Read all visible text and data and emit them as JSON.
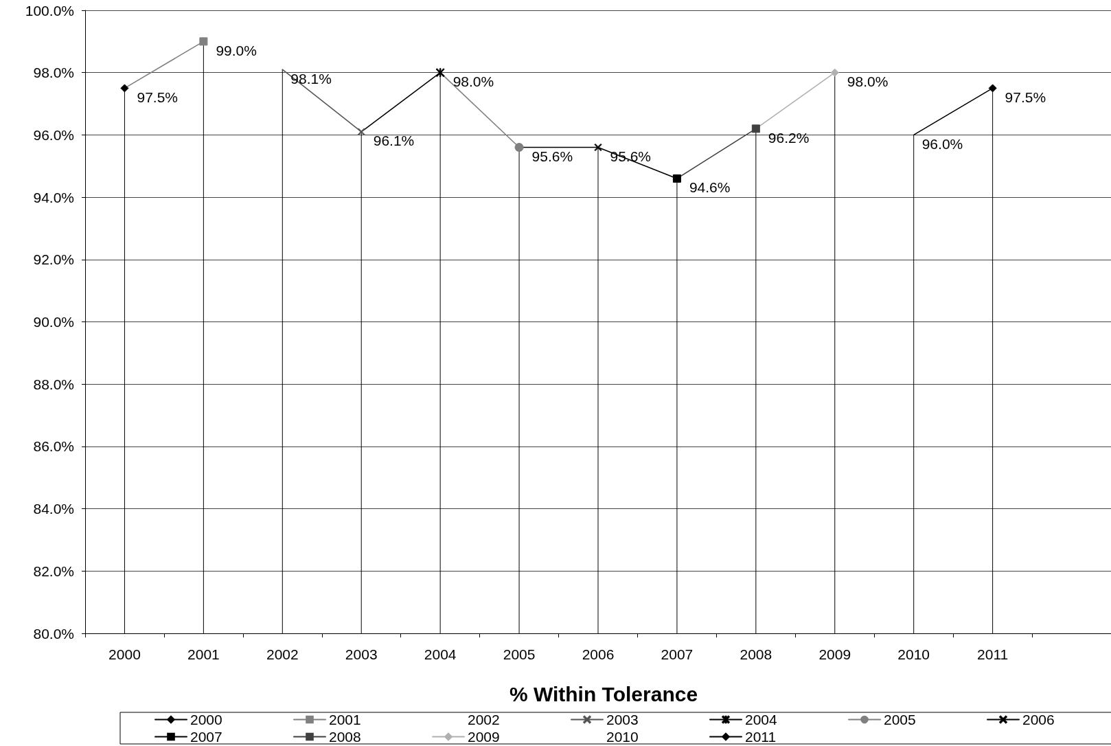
{
  "chart_data": {
    "type": "line",
    "title": "% Within Tolerance",
    "categories": [
      "2000",
      "2001",
      "2002",
      "2003",
      "2004",
      "2005",
      "2006",
      "2007",
      "2008",
      "2009",
      "2010",
      "2011",
      null
    ],
    "ylim": [
      80,
      100
    ],
    "yticks": [
      {
        "value": 80,
        "label": "80.0%"
      },
      {
        "value": 82,
        "label": "82.0%"
      },
      {
        "value": 84,
        "label": "84.0%"
      },
      {
        "value": 86,
        "label": "86.0%"
      },
      {
        "value": 88,
        "label": "88.0%"
      },
      {
        "value": 90,
        "label": "90.0%"
      },
      {
        "value": 92,
        "label": "92.0%"
      },
      {
        "value": 94,
        "label": "94.0%"
      },
      {
        "value": 96,
        "label": "96.0%"
      },
      {
        "value": 98,
        "label": "98.0%"
      },
      {
        "value": 100,
        "label": "100.0%"
      }
    ],
    "grid": "y",
    "legend": "bottom",
    "series": [
      {
        "name": "2000",
        "color": "#000000",
        "marker": "diamond",
        "values": [
          97.5,
          null,
          null,
          null,
          null,
          null,
          null,
          null,
          null,
          null,
          null,
          null,
          null
        ],
        "value_labels": [
          "97.5%",
          null,
          null,
          null,
          null,
          null,
          null,
          null,
          null,
          null,
          null,
          null,
          null
        ]
      },
      {
        "name": "2001",
        "color": "#808080",
        "marker": "square",
        "values": [
          97.5,
          99.0,
          null,
          null,
          null,
          null,
          null,
          null,
          null,
          null,
          null,
          null,
          null
        ],
        "value_labels": [
          null,
          "99.0%",
          null,
          null,
          null,
          null,
          null,
          null,
          null,
          null,
          null,
          null,
          null
        ]
      },
      {
        "name": "2002",
        "marker": "none",
        "values": [
          null,
          null,
          null,
          null,
          null,
          null,
          null,
          null,
          null,
          null,
          null,
          null,
          null
        ]
      },
      {
        "name": "2003",
        "color": "#555555",
        "marker": "cross",
        "values": [
          null,
          null,
          98.1,
          96.1,
          null,
          null,
          null,
          null,
          null,
          null,
          null,
          null,
          null
        ],
        "value_labels": [
          null,
          null,
          "98.1%",
          "96.1%",
          null,
          null,
          null,
          null,
          null,
          null,
          null,
          null,
          null
        ]
      },
      {
        "name": "2004",
        "color": "#000000",
        "marker": "star",
        "values": [
          null,
          null,
          null,
          96.1,
          98.0,
          null,
          null,
          null,
          null,
          null,
          null,
          null,
          null
        ],
        "value_labels": [
          null,
          null,
          null,
          null,
          "98.0%",
          null,
          null,
          null,
          null,
          null,
          null,
          null,
          null
        ]
      },
      {
        "name": "2005",
        "color": "#808080",
        "marker": "circle",
        "values": [
          null,
          null,
          null,
          null,
          98.0,
          95.6,
          null,
          null,
          null,
          null,
          null,
          null,
          null
        ],
        "value_labels": [
          null,
          null,
          null,
          null,
          null,
          "95.6%",
          null,
          null,
          null,
          null,
          null,
          null,
          null
        ]
      },
      {
        "name": "2006",
        "color": "#000000",
        "marker": "cross",
        "values": [
          null,
          null,
          null,
          null,
          null,
          95.6,
          95.6,
          null,
          null,
          null,
          null,
          null,
          null
        ],
        "value_labels": [
          null,
          null,
          null,
          null,
          null,
          null,
          "95.6%",
          null,
          null,
          null,
          null,
          null,
          null
        ]
      },
      {
        "name": "2007",
        "color": "#000000",
        "marker": "square",
        "values": [
          null,
          null,
          null,
          null,
          null,
          null,
          95.6,
          94.6,
          null,
          null,
          null,
          null,
          null
        ],
        "value_labels": [
          null,
          null,
          null,
          null,
          null,
          null,
          null,
          "94.6%",
          null,
          null,
          null,
          null,
          null
        ]
      },
      {
        "name": "2008",
        "color": "#404040",
        "marker": "square",
        "values": [
          null,
          null,
          null,
          null,
          null,
          null,
          null,
          94.6,
          96.2,
          null,
          null,
          null,
          null
        ],
        "value_labels": [
          null,
          null,
          null,
          null,
          null,
          null,
          null,
          null,
          "96.2%",
          null,
          null,
          null,
          null
        ]
      },
      {
        "name": "2009",
        "color": "#b0b0b0",
        "marker": "diamond",
        "values": [
          null,
          null,
          null,
          null,
          null,
          null,
          null,
          null,
          96.2,
          98.0,
          null,
          null,
          null
        ],
        "value_labels": [
          null,
          null,
          null,
          null,
          null,
          null,
          null,
          null,
          null,
          "98.0%",
          null,
          null,
          null
        ]
      },
      {
        "name": "2010",
        "marker": "none",
        "values": [
          null,
          null,
          null,
          null,
          null,
          null,
          null,
          null,
          null,
          null,
          null,
          null,
          null
        ]
      },
      {
        "name": "2011",
        "color": "#000000",
        "marker": "diamond",
        "values": [
          null,
          null,
          null,
          null,
          null,
          null,
          null,
          null,
          null,
          null,
          96.0,
          97.5,
          null
        ],
        "value_labels": [
          null,
          null,
          null,
          null,
          null,
          null,
          null,
          null,
          null,
          null,
          "96.0%",
          "97.5%",
          null
        ]
      }
    ]
  }
}
